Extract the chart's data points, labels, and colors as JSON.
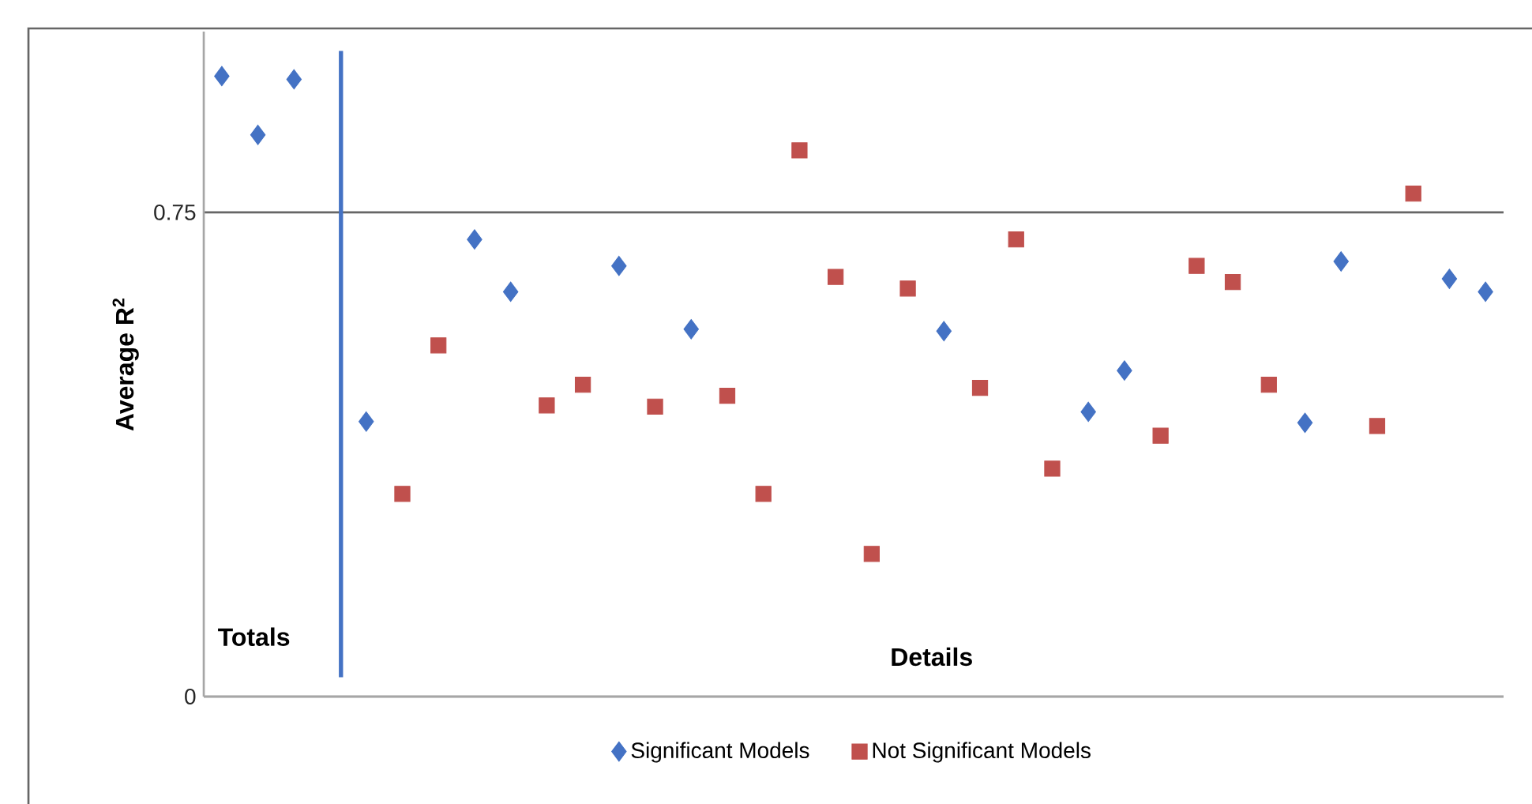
{
  "chart_data": {
    "type": "scatter",
    "ylabel": "**Average R$^{2}$**",
    "categories": [
      null,
      null,
      null,
      null,
      null,
      null,
      null,
      null,
      null,
      null,
      null,
      null,
      null,
      null,
      null,
      null,
      null,
      null,
      null,
      null,
      null,
      null,
      null,
      null,
      null,
      null,
      null,
      null,
      null,
      null,
      null,
      null,
      null,
      null,
      null,
      null
    ],
    "ylim": [
      0,
      1.03
    ],
    "yticks": [
      0,
      0.75
    ],
    "tick_labels": "y",
    "grid": "y",
    "legend": "bottom",
    "series": [
      {
        "name": "Significant Models",
        "color": "#4472c4",
        "marker": "diamond",
        "values": [
          0.961,
          0.87,
          0.956,
          null,
          0.426,
          null,
          null,
          0.708,
          0.627,
          null,
          null,
          0.667,
          null,
          0.569,
          null,
          null,
          null,
          null,
          null,
          null,
          0.566,
          null,
          null,
          null,
          0.441,
          0.505,
          null,
          null,
          null,
          null,
          0.424,
          0.674,
          null,
          null,
          0.647,
          0.627
        ]
      },
      {
        "name": "Not Significant Models",
        "color": "#c0504d",
        "marker": "square",
        "values": [
          null,
          null,
          null,
          null,
          null,
          0.314,
          0.544,
          null,
          null,
          0.451,
          0.483,
          null,
          0.449,
          null,
          0.466,
          0.314,
          0.846,
          0.65,
          0.221,
          0.632,
          null,
          0.478,
          0.708,
          0.353,
          null,
          null,
          0.404,
          0.667,
          0.642,
          0.483,
          null,
          null,
          0.419,
          0.779,
          null,
          null
        ]
      }
    ],
    "annotations": [
      "**Totals**",
      "**Details**"
    ]
  }
}
